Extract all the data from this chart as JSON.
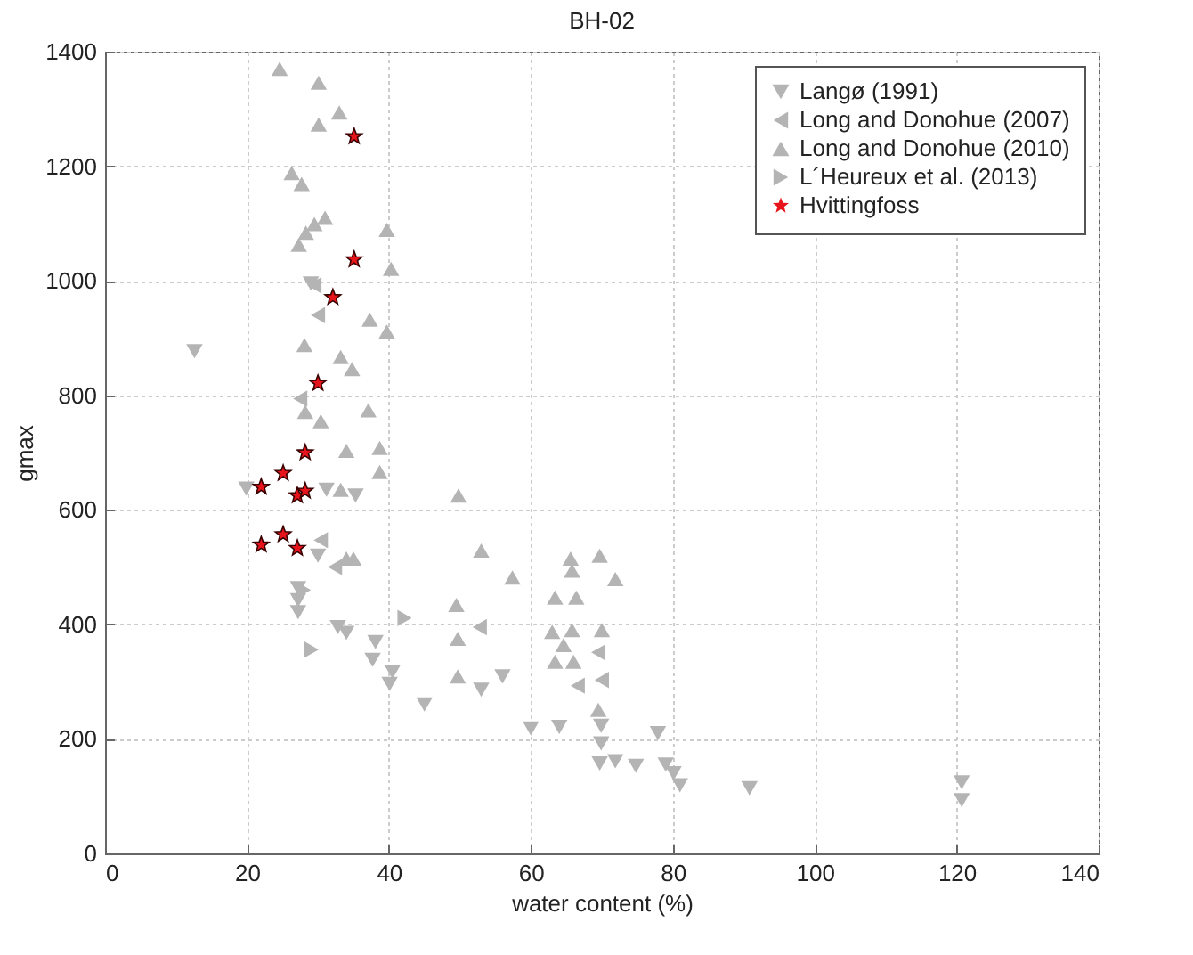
{
  "chart_data": {
    "type": "scatter",
    "title": "BH-02",
    "xlabel": "water content (%)",
    "ylabel": "gmax",
    "xlim": [
      0,
      140
    ],
    "xticks": [
      0,
      20,
      40,
      60,
      80,
      100,
      120,
      140
    ],
    "ylim": [
      0,
      1400
    ],
    "yticks": [
      0,
      200,
      400,
      600,
      800,
      1000,
      1200,
      1400
    ],
    "grid": true,
    "legend": "top right",
    "series": [
      {
        "name": "Langø (1991)",
        "color": "#b4b4b4",
        "marker": "triangle-down",
        "x": [
          12.6,
          19.9,
          27.2,
          27.2,
          27.2,
          32.8,
          34.0,
          38.1,
          37.7,
          40.5,
          40.1,
          45.0,
          53.0,
          56.0,
          60.0,
          64.0,
          69.9,
          69.9,
          69.7,
          71.9,
          74.8,
          77.9,
          79.0,
          80.1,
          81.0,
          90.8,
          120.7,
          120.7,
          31.2,
          35.3,
          30.0,
          29.0
        ],
        "values": [
          877,
          637,
          463,
          442,
          421,
          395,
          385,
          369,
          338,
          317,
          296,
          260,
          286,
          309,
          218,
          221,
          223,
          192,
          157,
          161,
          153,
          210,
          155,
          140,
          119,
          114,
          124,
          93,
          635,
          625,
          520,
          995
        ]
      },
      {
        "name": "Long and Donohue (2007)",
        "color": "#b4b4b4",
        "marker": "triangle-left",
        "x": [
          29.5,
          30.0,
          27.5,
          52.8,
          66.6,
          70.0,
          69.5,
          32.4,
          30.4
        ],
        "values": [
          992,
          940,
          794,
          395,
          293,
          303,
          351,
          500,
          547
        ]
      },
      {
        "name": "Long and Donohue (2010)",
        "color": "#b4b4b4",
        "marker": "triangle-up",
        "x": [
          24.6,
          30.1,
          33.0,
          30.1,
          26.3,
          27.7,
          31.0,
          29.5,
          28.3,
          27.3,
          39.7,
          40.3,
          37.3,
          39.7,
          28.1,
          33.2,
          34.8,
          37.1,
          30.4,
          28.2,
          34.0,
          38.7,
          38.7,
          33.2,
          49.8,
          53.0,
          57.4,
          49.5,
          49.7,
          49.7,
          65.6,
          69.7,
          71.9,
          65.8,
          63.4,
          66.4,
          63.0,
          65.8,
          70.0,
          64.6,
          66.0,
          63.4,
          69.5,
          34.0,
          35.0
        ],
        "values": [
          1370,
          1346,
          1294,
          1273,
          1188,
          1169,
          1110,
          1099,
          1084,
          1063,
          1089,
          1021,
          932,
          911,
          888,
          867,
          846,
          774,
          755,
          771,
          703,
          708,
          666,
          635,
          625,
          529,
          482,
          434,
          375,
          309,
          515,
          520,
          479,
          494,
          447,
          447,
          387,
          390,
          390,
          364,
          335,
          335,
          251,
          515,
          515
        ]
      },
      {
        "name": "L´Heureux et al. (2013)",
        "color": "#b4b4b4",
        "marker": "triangle-right",
        "x": [
          29.1,
          42.2,
          28.0
        ],
        "values": [
          356,
          411,
          460
        ]
      },
      {
        "name": "Hvittingfoss",
        "color": "#e8141c",
        "marker": "star",
        "x": [
          35.1,
          35.1,
          32.1,
          30.0,
          28.2,
          25.1,
          22.0,
          27.1,
          28.2,
          25.1,
          22.0,
          27.1
        ],
        "values": [
          1252,
          1037,
          971,
          821,
          700,
          664,
          640,
          625,
          633,
          557,
          539,
          533
        ]
      }
    ]
  }
}
